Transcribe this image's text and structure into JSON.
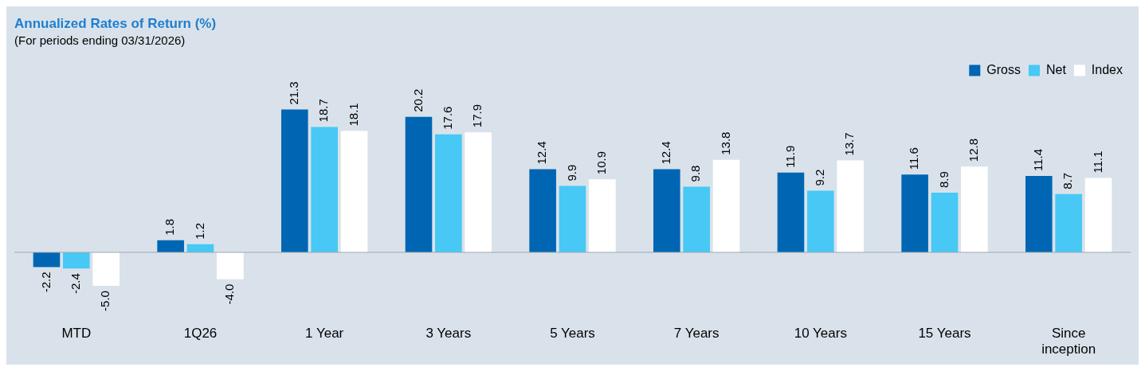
{
  "chart_data": {
    "type": "bar",
    "title": "Annualized Rates of Return (%)",
    "subtitle": "(For periods ending 03/31/2026)",
    "categories": [
      "MTD",
      "1Q26",
      "1 Year",
      "3 Years",
      "5 Years",
      "7 Years",
      "10 Years",
      "15 Years",
      "Since inception"
    ],
    "series": [
      {
        "name": "Gross",
        "color": "#0066b3",
        "values": [
          -2.2,
          1.8,
          21.3,
          20.2,
          12.4,
          12.4,
          11.9,
          11.6,
          11.4
        ],
        "value_labels": [
          "-2.2",
          "1.8",
          "21.3",
          "20.2",
          "12.4",
          "12.4",
          "11.9",
          "11.6",
          "11.4"
        ]
      },
      {
        "name": "Net",
        "color": "#47c8f5",
        "values": [
          -2.4,
          1.2,
          18.7,
          17.6,
          9.9,
          9.8,
          9.2,
          8.9,
          8.7
        ],
        "value_labels": [
          "-2.4",
          "1.2",
          "18.7",
          "17.6",
          "9.9",
          "9.8",
          "9.2",
          "8.9",
          "8.7"
        ]
      },
      {
        "name": "Index",
        "color": "#ffffff",
        "values": [
          -5.0,
          -4.0,
          18.1,
          17.9,
          10.9,
          13.8,
          13.7,
          12.8,
          11.1
        ],
        "value_labels": [
          "-5.0",
          "-4.0",
          "18.1",
          "17.9",
          "10.9",
          "13.8",
          "13.7",
          "12.8",
          "11.1"
        ]
      }
    ],
    "legend": "top right",
    "grid": false,
    "tick_labels": "x"
  }
}
